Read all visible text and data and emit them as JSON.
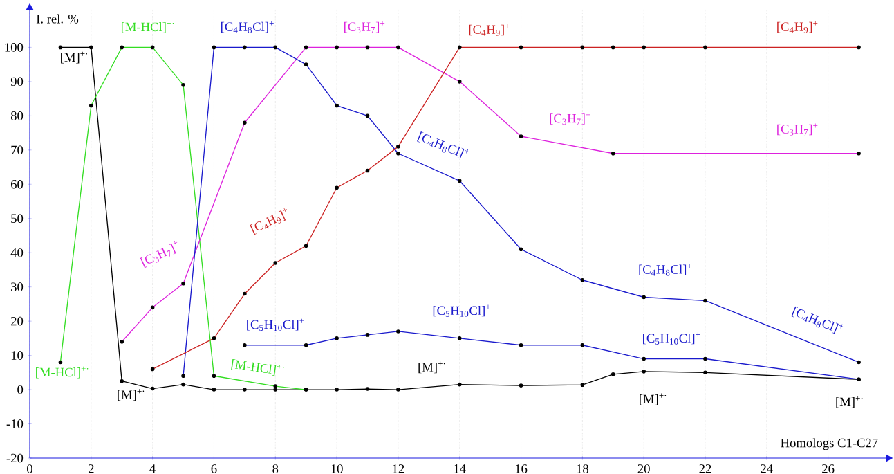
{
  "chart_data": {
    "type": "line",
    "xlabel": "Homologs C1-C27",
    "ylabel": "I. rel. %",
    "xlim": [
      0,
      27.9
    ],
    "ylim": [
      -20,
      111
    ],
    "xticks": [
      0,
      2,
      4,
      6,
      8,
      10,
      12,
      14,
      16,
      18,
      20,
      22,
      24,
      26
    ],
    "yticks": [
      -20,
      -10,
      0,
      10,
      20,
      30,
      40,
      50,
      60,
      70,
      80,
      90,
      100
    ],
    "grid": "x",
    "marker": "circle",
    "series": [
      {
        "color": "#000000",
        "x": [
          1,
          2,
          3,
          4,
          5,
          6,
          7,
          8,
          9,
          10,
          11,
          12,
          14,
          16,
          18,
          19,
          20,
          22,
          27
        ],
        "values": [
          100,
          100,
          2.5,
          0.3,
          1.5,
          0,
          0,
          0,
          0,
          0,
          0.2,
          0,
          1.5,
          1.2,
          1.4,
          4.5,
          5.3,
          5,
          3
        ]
      },
      {
        "color": "#33dd22",
        "x": [
          1,
          2,
          3,
          4,
          5,
          6,
          8,
          9
        ],
        "values": [
          8,
          83,
          100,
          100,
          89,
          4,
          1,
          0
        ]
      },
      {
        "color": "#dd22dd",
        "x": [
          3,
          4,
          5,
          7,
          9,
          10,
          11,
          12,
          14,
          16,
          19,
          27
        ],
        "values": [
          14,
          24,
          31,
          78,
          100,
          100,
          100,
          100,
          90,
          74,
          69,
          69
        ]
      },
      {
        "color": "#1a1acc",
        "x": [
          5,
          6,
          7,
          8,
          9,
          10,
          11,
          12,
          14,
          16,
          18,
          20,
          22,
          27
        ],
        "values": [
          4,
          100,
          100,
          100,
          95,
          83,
          80,
          69,
          61,
          41,
          32,
          27,
          26,
          8
        ]
      },
      {
        "color": "#1a1acc",
        "x": [
          7,
          9,
          10,
          11,
          12,
          14,
          16,
          18,
          20,
          22,
          27
        ],
        "values": [
          13,
          13,
          15,
          16,
          17,
          15,
          13,
          13,
          9,
          9,
          3
        ]
      },
      {
        "color": "#cc2222",
        "x": [
          4,
          6,
          7,
          8,
          9,
          10,
          11,
          12,
          14,
          16,
          18,
          19,
          20,
          22,
          27
        ],
        "values": [
          6,
          15,
          28,
          37,
          42,
          59,
          64,
          71,
          100,
          100,
          100,
          100,
          100,
          100,
          100
        ]
      }
    ],
    "annotations": [
      {
        "text": "[M]$^{+·}$",
        "x": 1.45,
        "y": 100
      },
      {
        "text": "[M-HCl]$^{+·}$",
        "x": 3.85,
        "y": 100
      },
      {
        "text": "[C$_{4}$H$_{8}$Cl]$^{+}$",
        "x": 7.09,
        "y": 100
      },
      {
        "text": "[C$_{3}$H$_{7}$]$^{+}$",
        "x": 10.9,
        "y": 100
      },
      {
        "text": "[C$_{4}$H$_{9}$]$^{+}$",
        "x": 14.97,
        "y": 100
      },
      {
        "text": "[C$_{4}$H$_{9}$]$^{+}$",
        "x": 25.0,
        "y": 100
      },
      {
        "text": "[C$_{3}$H$_{7}$]$^{+}$",
        "x": 17.6,
        "y": 71.33
      },
      {
        "text": "[C$_{3}$H$_{7}$]$^{+}$",
        "x": 25.0,
        "y": 69
      },
      {
        "text": "[C$_{4}$H$_{8}$Cl]$^{+}$",
        "x": 13.47,
        "y": 63.12
      },
      {
        "text": "[C$_{4}$H$_{9}$]$^{+}$",
        "x": 7.83,
        "y": 35.47
      },
      {
        "text": "[C$_{3}$H$_{7}$]$^{+}$",
        "x": 5.34,
        "y": 39
      },
      {
        "text": "[C$_{5}$H$_{10}$Cl]$^{+}$",
        "x": 8.0,
        "y": 13
      },
      {
        "text": "[C$_{5}$H$_{10}$Cl]$^{+}$",
        "x": 14.07,
        "y": 14.93
      },
      {
        "text": "[C$_{4}$H$_{8}$Cl]$^{+}$",
        "x": 20.7,
        "y": 26.65
      },
      {
        "text": "[C$_{5}$H$_{10}$Cl]$^{+}$",
        "x": 20.9,
        "y": 9
      },
      {
        "text": "[C$_{4}$H$_{8}$Cl]$^{+}$",
        "x": 25.66,
        "y": 12.82
      },
      {
        "text": "[M-HCl]$^{+·}$",
        "x": 1,
        "y": 8
      },
      {
        "text": "[M]$^{+·}$",
        "x": 3,
        "y": 2.5
      },
      {
        "text": "[M-HCl]$^{+·}$",
        "x": 7.43,
        "y": 1.86
      },
      {
        "text": "[M]$^{+·}$",
        "x": 13.1,
        "y": 0.83
      },
      {
        "text": "[M]$^{+·}$",
        "x": 20.3,
        "y": 5.26
      },
      {
        "text": "[M]$^{+·}$",
        "x": 26.7,
        "y": 3.12
      }
    ]
  }
}
